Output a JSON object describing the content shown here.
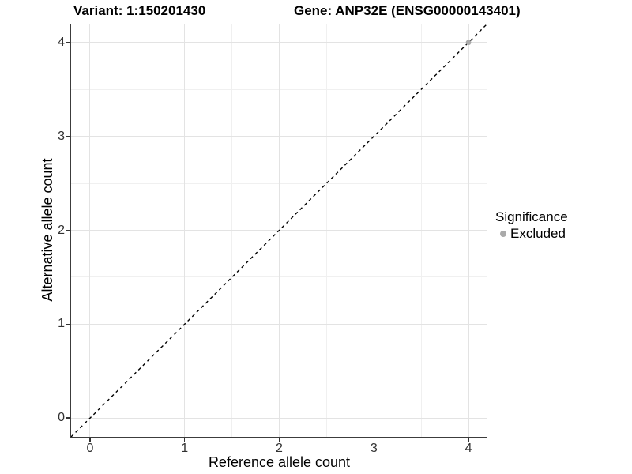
{
  "chart_data": {
    "type": "scatter",
    "titles": {
      "left": "Variant: 1:150201430",
      "right": "Gene: ANP32E (ENSG00000143401)"
    },
    "xlabel": "Reference allele count",
    "ylabel": "Alternative allele count",
    "xlim": [
      -0.2,
      4.2
    ],
    "ylim": [
      -0.2,
      4.2
    ],
    "x_ticks": [
      0,
      1,
      2,
      3,
      4
    ],
    "y_ticks": [
      0,
      1,
      2,
      3,
      4
    ],
    "grid": {
      "major_color": "#e3e3e3",
      "minor_color": "#f0f0f0",
      "minor_step": 0.5
    },
    "reference_line": {
      "type": "identity y=x",
      "style": "dashed",
      "color": "#000000"
    },
    "series": [
      {
        "name": "Excluded",
        "color": "#aaaaaa",
        "points": [
          [
            4,
            4
          ]
        ]
      }
    ],
    "legend": {
      "title": "Significance",
      "position": "right",
      "items": [
        {
          "label": "Excluded",
          "color": "#aaaaaa"
        }
      ]
    }
  }
}
